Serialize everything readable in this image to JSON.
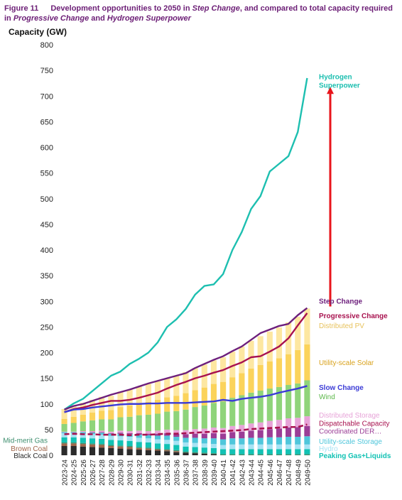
{
  "figure": {
    "number": "Figure 11",
    "title_parts": [
      {
        "text": "Development opportunities to 2050 in ",
        "italic": false
      },
      {
        "text": "Step Change",
        "italic": true
      },
      {
        "text": ", and compared to total capacity required in ",
        "italic": false
      },
      {
        "text": "Progressive Change",
        "italic": true
      },
      {
        "text": " and ",
        "italic": false
      },
      {
        "text": "Hydrogen Superpower",
        "italic": true
      }
    ]
  },
  "chart_data": {
    "type": "bar",
    "stacked": true,
    "ylabel": "Capacity (GW)",
    "ylim": [
      0,
      800
    ],
    "yticks": [
      0,
      50,
      100,
      150,
      200,
      250,
      300,
      350,
      400,
      450,
      500,
      550,
      600,
      650,
      700,
      750,
      800
    ],
    "grid": false,
    "categories": [
      "2023-24",
      "2024-25",
      "2025-26",
      "2026-27",
      "2027-28",
      "2028-29",
      "2029-30",
      "2030-31",
      "2031-32",
      "2032-33",
      "2033-34",
      "2034-35",
      "2035-36",
      "2036-37",
      "2037-38",
      "2038-39",
      "2039-40",
      "2040-41",
      "2041-42",
      "2042-43",
      "2043-44",
      "2044-45",
      "2045-46",
      "2046-47",
      "2047-48",
      "2048-49",
      "2049-50"
    ],
    "stack_series": [
      {
        "name": "Black Coal",
        "color": "#2b2b2b",
        "values": [
          18,
          18,
          17,
          16,
          15,
          14,
          13,
          12,
          11,
          10,
          9,
          8,
          6,
          5,
          4,
          3,
          2,
          0,
          0,
          0,
          0,
          0,
          0,
          0,
          0,
          0,
          0
        ]
      },
      {
        "name": "Brown Coal",
        "color": "#a0664a",
        "values": [
          5,
          5,
          5,
          5,
          5,
          4,
          4,
          4,
          3,
          3,
          2,
          2,
          2,
          0,
          0,
          0,
          0,
          0,
          0,
          0,
          0,
          0,
          0,
          0,
          0,
          0,
          0
        ]
      },
      {
        "name": "Mid-merit Gas",
        "color": "#3f8f6f",
        "values": [
          2,
          2,
          2,
          2,
          2,
          2,
          2,
          2,
          2,
          2,
          2,
          2,
          2,
          2,
          2,
          2,
          2,
          2,
          2,
          2,
          2,
          2,
          2,
          2,
          2,
          2,
          2
        ]
      },
      {
        "name": "Peaking Gas+Liquids",
        "color": "#12c2b4",
        "values": [
          10,
          10,
          10,
          10,
          10,
          10,
          10,
          10,
          10,
          10,
          10,
          10,
          10,
          10,
          10,
          10,
          10,
          10,
          10,
          10,
          10,
          10,
          10,
          10,
          10,
          10,
          10
        ]
      },
      {
        "name": "Hydro",
        "color": "#a7e3f4",
        "values": [
          8,
          8,
          8,
          8,
          8,
          8,
          8,
          8,
          8,
          8,
          8,
          8,
          8,
          8,
          8,
          8,
          8,
          8,
          9,
          9,
          9,
          9,
          9,
          9,
          9,
          9,
          9
        ]
      },
      {
        "name": "Utility-scale Storage",
        "color": "#4fc6db",
        "values": [
          2,
          2,
          3,
          3,
          4,
          4,
          5,
          5,
          6,
          6,
          7,
          8,
          8,
          9,
          10,
          10,
          11,
          11,
          12,
          12,
          13,
          13,
          14,
          14,
          15,
          15,
          16
        ]
      },
      {
        "name": "Coordinated DER Storage",
        "color": "#9b3d96",
        "values": [
          0,
          0,
          0,
          1,
          1,
          1,
          2,
          2,
          3,
          3,
          4,
          5,
          6,
          7,
          8,
          9,
          10,
          11,
          12,
          13,
          14,
          15,
          16,
          17,
          18,
          19,
          20
        ]
      },
      {
        "name": "Distributed Storage",
        "color": "#e7a3d8",
        "values": [
          1,
          1,
          2,
          2,
          3,
          3,
          4,
          4,
          5,
          5,
          6,
          7,
          7,
          8,
          9,
          10,
          11,
          11,
          12,
          13,
          14,
          15,
          16,
          17,
          18,
          18,
          19
        ]
      },
      {
        "name": "Wind",
        "color": "#8fd47a",
        "values": [
          15,
          17,
          19,
          21,
          22,
          24,
          26,
          28,
          30,
          32,
          33,
          35,
          37,
          40,
          43,
          45,
          48,
          52,
          55,
          58,
          60,
          62,
          63,
          64,
          65,
          67,
          70
        ]
      },
      {
        "name": "Utility-scale Solar",
        "color": "#fbd35b",
        "values": [
          10,
          12,
          13,
          15,
          17,
          18,
          20,
          22,
          23,
          25,
          27,
          28,
          30,
          32,
          33,
          35,
          37,
          38,
          40,
          43,
          47,
          50,
          53,
          56,
          60,
          65,
          70
        ]
      },
      {
        "name": "Distributed PV",
        "color": "#fde7a1",
        "values": [
          19,
          22,
          23,
          25,
          27,
          28,
          30,
          31,
          33,
          35,
          36,
          37,
          39,
          41,
          43,
          45,
          46,
          48,
          50,
          52,
          54,
          56,
          58,
          60,
          62,
          65,
          70
        ]
      }
    ],
    "line_series": [
      {
        "name": "Hydrogen Superpower",
        "color": "#1dbfb0",
        "style": "solid",
        "values": [
          89,
          101,
          110,
          125,
          140,
          155,
          163,
          178,
          188,
          200,
          220,
          250,
          265,
          285,
          313,
          330,
          333,
          353,
          400,
          435,
          480,
          505,
          553,
          568,
          583,
          630,
          735
        ]
      },
      {
        "name": "Step Change",
        "color": "#6d1f7c",
        "style": "solid",
        "values": [
          89,
          96,
          100,
          106,
          112,
          118,
          123,
          128,
          134,
          140,
          145,
          150,
          155,
          160,
          170,
          178,
          186,
          193,
          203,
          212,
          225,
          238,
          245,
          252,
          256,
          273,
          287
        ]
      },
      {
        "name": "Progressive Change",
        "color": "#a8124f",
        "style": "solid",
        "values": [
          84,
          90,
          93,
          98,
          102,
          106,
          106,
          108,
          112,
          117,
          122,
          130,
          137,
          143,
          150,
          155,
          161,
          166,
          174,
          181,
          191,
          193,
          202,
          212,
          228,
          253,
          277
        ]
      },
      {
        "name": "Slow Change",
        "color": "#3b3bd6",
        "style": "solid",
        "values": [
          84,
          89,
          90,
          93,
          95,
          97,
          99,
          100,
          100,
          101,
          101,
          102,
          102,
          102,
          103,
          104,
          105,
          108,
          106,
          110,
          112,
          114,
          117,
          122,
          126,
          130,
          135
        ]
      },
      {
        "name": "Dispatchable Capacity",
        "color": "#a8124f",
        "style": "dashed",
        "values": [
          41,
          42,
          41,
          41,
          40,
          40,
          40,
          39,
          40,
          40,
          41,
          42,
          42,
          43,
          44,
          45,
          46,
          47,
          48,
          49,
          51,
          52,
          53,
          54,
          55,
          55,
          60
        ]
      }
    ],
    "legend_labels": [
      {
        "text": "Hydrogen\nSuperpower",
        "color": "#1dbfb0",
        "bold": true,
        "side": "right",
        "value": 722
      },
      {
        "text": "Step Change",
        "color": "#6d1f7c",
        "bold": true,
        "side": "right",
        "value": 301
      },
      {
        "text": "Progressive Change",
        "color": "#a8124f",
        "bold": true,
        "side": "right",
        "value": 273
      },
      {
        "text": "Distributed PV",
        "color": "#e7c25c",
        "bold": false,
        "side": "right",
        "value": 253
      },
      {
        "text": "Utility-scale Solar",
        "color": "#d9a21c",
        "bold": false,
        "side": "right",
        "value": 181
      },
      {
        "text": "Slow Change",
        "color": "#3b3bd6",
        "bold": true,
        "side": "right",
        "value": 133
      },
      {
        "text": "Wind",
        "color": "#5db84a",
        "bold": false,
        "side": "right",
        "value": 115
      },
      {
        "text": "Distributed Storage",
        "color": "#e7a3d8",
        "bold": false,
        "side": "right",
        "value": 79
      },
      {
        "text": "Dispatchable Capacity",
        "color": "#a8124f",
        "bold": false,
        "side": "right",
        "value": 63
      },
      {
        "text": "Coordinated DER…",
        "color": "#9b3d96",
        "bold": false,
        "side": "right",
        "value": 48
      },
      {
        "text": "Utility-scale Storage",
        "color": "#4fc6db",
        "bold": false,
        "side": "right",
        "value": 28
      },
      {
        "text": "Hydro",
        "color": "#a7e3f4",
        "bold": false,
        "side": "right",
        "value": 14
      },
      {
        "text": "Peaking Gas+Liquids",
        "color": "#12c2b4",
        "bold": true,
        "side": "right",
        "value": 0
      },
      {
        "text": "Mid-merit Gas",
        "color": "#3f8f6f",
        "bold": false,
        "side": "left",
        "value": 30
      },
      {
        "text": "Brown Coal",
        "color": "#a0664a",
        "bold": false,
        "side": "left",
        "value": 14
      },
      {
        "text": "Black Coal",
        "color": "#2b2b2b",
        "bold": false,
        "side": "left",
        "value": 0
      }
    ],
    "annotation": {
      "type": "arrow",
      "color": "#e8141b",
      "category": "2049-50",
      "from": 290,
      "to": 718
    }
  }
}
